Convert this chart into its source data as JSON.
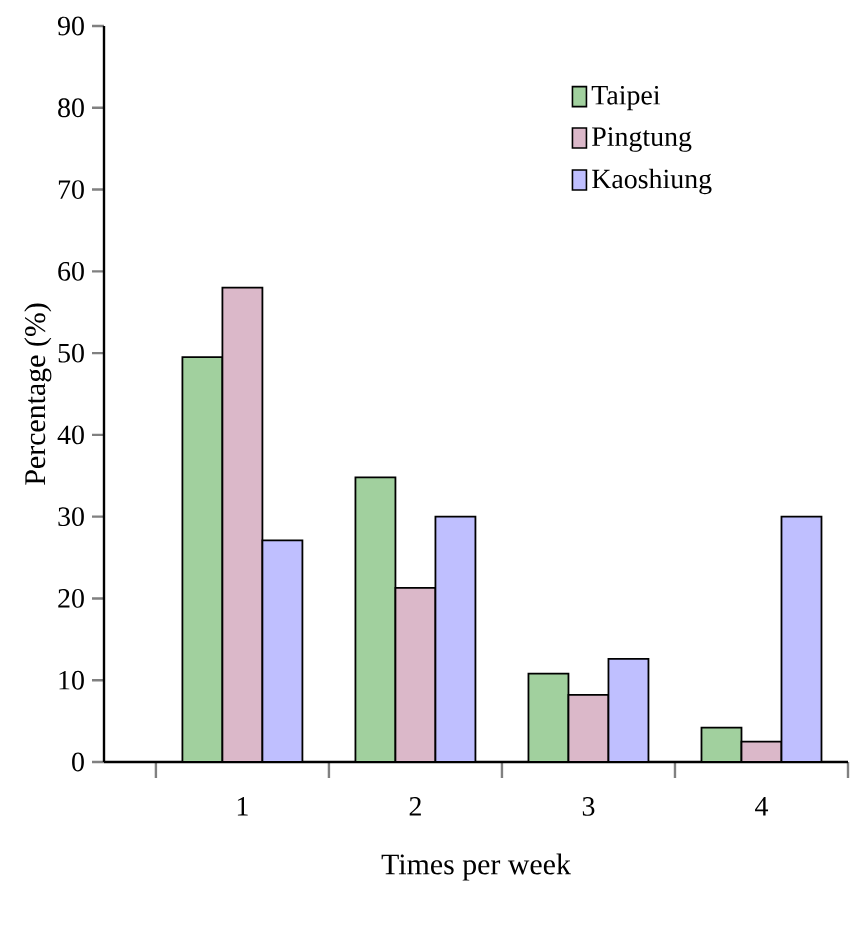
{
  "chart_data": {
    "type": "bar",
    "xlabel": "Times per week",
    "ylabel": "Percentage (%)",
    "categories": [
      "1",
      "2",
      "3",
      "4"
    ],
    "series": [
      {
        "name": "Taipei",
        "color": "#a1d09e",
        "values": [
          49.5,
          34.8,
          10.8,
          4.2
        ]
      },
      {
        "name": "Pingtung",
        "color": "#dbb8c9",
        "values": [
          58,
          21.3,
          8.2,
          2.5
        ]
      },
      {
        "name": "Kaoshiung",
        "color": "#bfbfff",
        "values": [
          27.1,
          30,
          12.6,
          30
        ]
      }
    ],
    "ylim": [
      0,
      90
    ],
    "yticks": [
      0,
      10,
      20,
      30,
      40,
      50,
      60,
      70,
      80,
      90
    ],
    "grid": false,
    "legend": "top right"
  }
}
